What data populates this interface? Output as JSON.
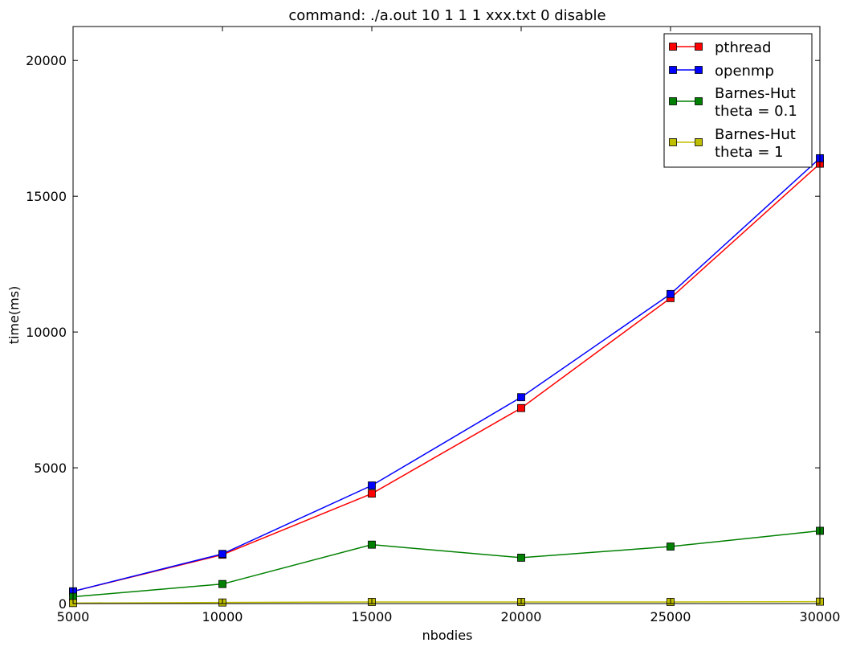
{
  "chart_data": {
    "type": "line",
    "title": "command: ./a.out 10 1 1 1 xxx.txt 0 disable",
    "xlabel": "nbodies",
    "ylabel": "time(ms)",
    "xlim": [
      5000,
      30000
    ],
    "ylim": [
      0,
      21250
    ],
    "xticks": [
      5000,
      10000,
      15000,
      20000,
      25000,
      30000
    ],
    "yticks": [
      0,
      5000,
      10000,
      15000,
      20000
    ],
    "x": [
      5000,
      10000,
      15000,
      20000,
      25000,
      30000
    ],
    "grid": false,
    "legend_position": "top-right",
    "series": [
      {
        "name": "pthread",
        "name_lines": [
          "pthread"
        ],
        "color": "#ff0000",
        "values": [
          450,
          1800,
          4050,
          7200,
          11250,
          16200
        ]
      },
      {
        "name": "openmp",
        "name_lines": [
          "openmp"
        ],
        "color": "#0000ff",
        "values": [
          450,
          1830,
          4350,
          7600,
          11400,
          16400
        ]
      },
      {
        "name": "Barnes-Hut theta = 0.1",
        "name_lines": [
          "Barnes-Hut",
          "theta = 0.1"
        ],
        "color": "#008000",
        "values": [
          250,
          720,
          2170,
          1690,
          2100,
          2680
        ]
      },
      {
        "name": "Barnes-Hut theta = 1",
        "name_lines": [
          "Barnes-Hut",
          "theta = 1"
        ],
        "color": "#bfbf00",
        "values": [
          20,
          40,
          60,
          60,
          60,
          70
        ]
      }
    ]
  }
}
